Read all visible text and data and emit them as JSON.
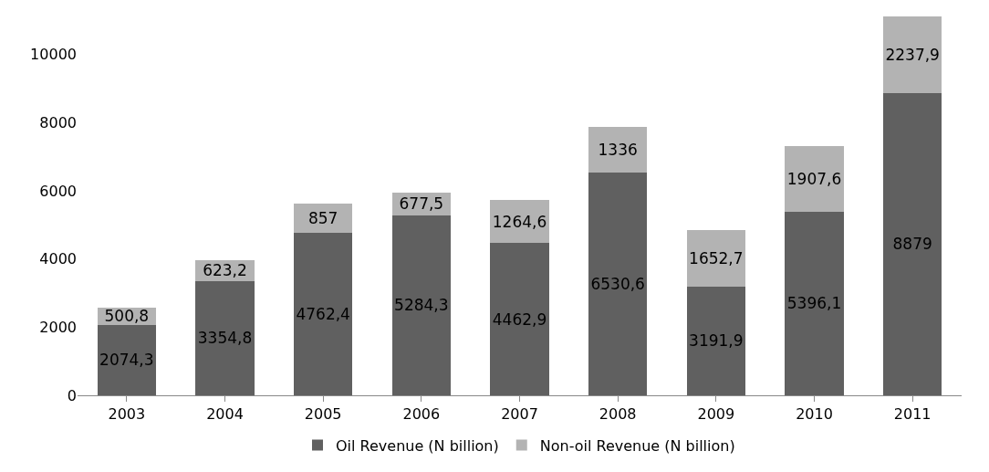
{
  "chart_data": {
    "type": "bar",
    "stacked": true,
    "categories": [
      "2003",
      "2004",
      "2005",
      "2006",
      "2007",
      "2008",
      "2009",
      "2010",
      "2011"
    ],
    "series": [
      {
        "name": "Oil Revenue (N billion)",
        "color": "#606060",
        "values": [
          2074.3,
          3354.8,
          4762.4,
          5284.3,
          4462.9,
          6530.6,
          3191.9,
          5396.1,
          8879
        ],
        "value_labels": [
          "2074,3",
          "3354,8",
          "4762,4",
          "5284,3",
          "4462,9",
          "6530,6",
          "3191,9",
          "5396,1",
          "8879"
        ]
      },
      {
        "name": "Non-oil Revenue (N billion)",
        "color": "#b3b3b3",
        "values": [
          500.8,
          623.2,
          857,
          677.5,
          1264.6,
          1336,
          1652.7,
          1907.6,
          2237.9
        ],
        "value_labels": [
          "500,8",
          "623,2",
          "857",
          "677,5",
          "1264,6",
          "1336",
          "1652,7",
          "1907,6",
          "2237,9"
        ]
      }
    ],
    "ylim": [
      0,
      11200
    ],
    "yticks": [
      0,
      2000,
      4000,
      6000,
      8000,
      10000
    ],
    "grid": false,
    "legend": "bottom"
  }
}
